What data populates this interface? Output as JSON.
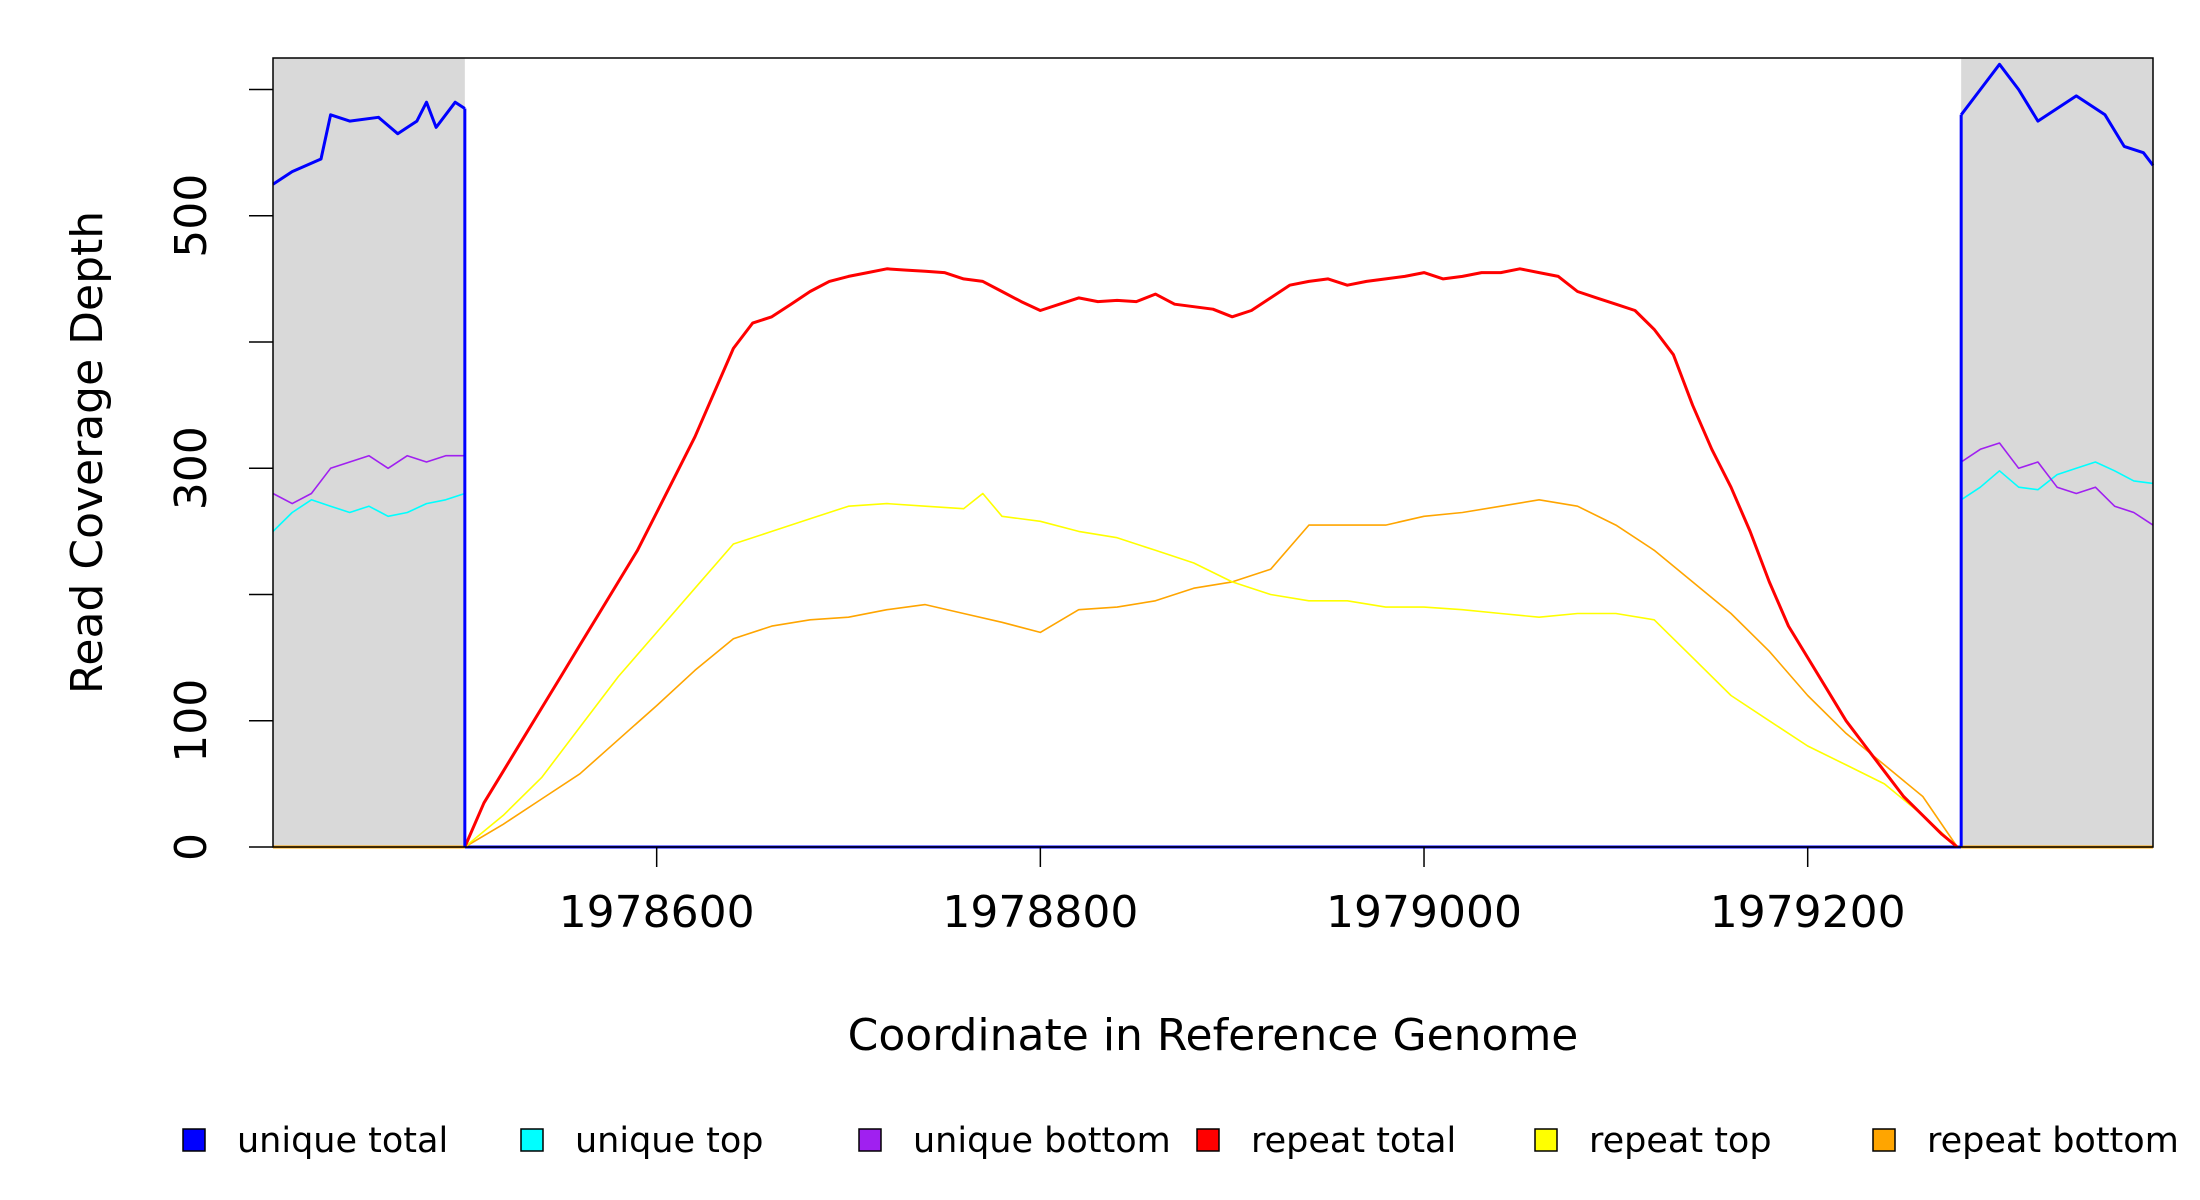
{
  "chart_data": {
    "type": "line",
    "xlabel": "Coordinate in Reference Genome",
    "ylabel": "Read Coverage Depth",
    "xlim": [
      1978400,
      1979380
    ],
    "ylim": [
      0,
      625
    ],
    "x_ticks": [
      1978600,
      1978800,
      1979000,
      1979200
    ],
    "x_tick_labels": [
      "1978600",
      "1978800",
      "1979000",
      "1979200"
    ],
    "y_ticks": [
      0,
      100,
      200,
      300,
      400,
      500,
      600
    ],
    "y_tick_labels": [
      "0",
      "100",
      "",
      "300",
      "",
      "500",
      ""
    ],
    "shaded_regions": [
      {
        "x_start": 1978400,
        "x_end": 1978500,
        "color": "#d9d9d9"
      },
      {
        "x_start": 1979280,
        "x_end": 1979380,
        "color": "#d9d9d9"
      }
    ],
    "legend_position": "bottom",
    "series": [
      {
        "name": "unique total",
        "color": "#0000ff",
        "segments": [
          {
            "x": [
              1978400,
              1978410,
              1978425,
              1978430,
              1978440,
              1978455,
              1978465,
              1978475,
              1978480,
              1978485,
              1978495,
              1978500
            ],
            "y": [
              525,
              535,
              545,
              580,
              575,
              578,
              565,
              575,
              590,
              570,
              590,
              585
            ]
          },
          {
            "x": [
              1979280,
              1979290,
              1979300,
              1979310,
              1979320,
              1979330,
              1979340,
              1979355,
              1979365,
              1979375,
              1979380
            ],
            "y": [
              580,
              600,
              620,
              600,
              575,
              585,
              595,
              580,
              555,
              550,
              540
            ]
          }
        ]
      },
      {
        "name": "unique top",
        "color": "#00ffff",
        "segments": [
          {
            "x": [
              1978400,
              1978410,
              1978420,
              1978430,
              1978440,
              1978450,
              1978460,
              1978470,
              1978480,
              1978490,
              1978500
            ],
            "y": [
              250,
              265,
              275,
              270,
              265,
              270,
              262,
              265,
              272,
              275,
              280
            ]
          },
          {
            "x": [
              1979280,
              1979290,
              1979300,
              1979310,
              1979320,
              1979330,
              1979340,
              1979350,
              1979360,
              1979370,
              1979380
            ],
            "y": [
              275,
              285,
              298,
              285,
              283,
              295,
              300,
              305,
              298,
              290,
              288
            ]
          }
        ]
      },
      {
        "name": "unique bottom",
        "color": "#a020f0",
        "segments": [
          {
            "x": [
              1978400,
              1978410,
              1978420,
              1978430,
              1978440,
              1978450,
              1978460,
              1978470,
              1978480,
              1978490,
              1978500
            ],
            "y": [
              280,
              272,
              280,
              300,
              305,
              310,
              300,
              310,
              305,
              310,
              310
            ]
          },
          {
            "x": [
              1979280,
              1979290,
              1979300,
              1979310,
              1979320,
              1979330,
              1979340,
              1979350,
              1979360,
              1979370,
              1979380
            ],
            "y": [
              305,
              315,
              320,
              300,
              305,
              285,
              280,
              285,
              270,
              265,
              255
            ]
          }
        ]
      },
      {
        "name": "repeat total",
        "color": "#ff0000",
        "segments": [
          {
            "x": [
              1978500,
              1978510,
              1978520,
              1978530,
              1978540,
              1978550,
              1978560,
              1978570,
              1978580,
              1978590,
              1978600,
              1978610,
              1978620,
              1978630,
              1978640,
              1978650,
              1978660,
              1978670,
              1978680,
              1978690,
              1978700,
              1978710,
              1978720,
              1978730,
              1978740,
              1978750,
              1978760,
              1978770,
              1978780,
              1978790,
              1978800,
              1978810,
              1978820,
              1978830,
              1978840,
              1978850,
              1978860,
              1978870,
              1978880,
              1978890,
              1978900,
              1978910,
              1978920,
              1978930,
              1978940,
              1978950,
              1978960,
              1978970,
              1978980,
              1978990,
              1979000,
              1979010,
              1979020,
              1979030,
              1979040,
              1979050,
              1979060,
              1979070,
              1979080,
              1979090,
              1979100,
              1979110,
              1979120,
              1979130,
              1979140,
              1979150,
              1979160,
              1979170,
              1979180,
              1979190,
              1979200,
              1979210,
              1979220,
              1979230,
              1979240,
              1979250,
              1979260,
              1979270,
              1979278
            ],
            "y": [
              0,
              35,
              60,
              85,
              110,
              135,
              160,
              185,
              210,
              235,
              265,
              295,
              325,
              360,
              395,
              415,
              420,
              430,
              440,
              448,
              452,
              455,
              458,
              457,
              456,
              455,
              450,
              448,
              440,
              432,
              425,
              430,
              435,
              432,
              433,
              432,
              438,
              430,
              428,
              426,
              420,
              425,
              435,
              445,
              448,
              450,
              445,
              448,
              450,
              452,
              455,
              450,
              452,
              455,
              455,
              458,
              455,
              452,
              440,
              435,
              430,
              425,
              410,
              390,
              350,
              315,
              285,
              250,
              210,
              175,
              150,
              125,
              100,
              80,
              60,
              40,
              25,
              10,
              0
            ]
          }
        ]
      },
      {
        "name": "repeat top",
        "color": "#ffff00",
        "segments": [
          {
            "x": [
              1978500,
              1978520,
              1978540,
              1978560,
              1978580,
              1978600,
              1978620,
              1978640,
              1978660,
              1978680,
              1978700,
              1978720,
              1978740,
              1978760,
              1978770,
              1978780,
              1978800,
              1978820,
              1978840,
              1978860,
              1978880,
              1978900,
              1978920,
              1978940,
              1978960,
              1978980,
              1979000,
              1979020,
              1979040,
              1979060,
              1979080,
              1979100,
              1979120,
              1979140,
              1979160,
              1979180,
              1979200,
              1979220,
              1979240,
              1979260,
              1979278
            ],
            "y": [
              0,
              25,
              55,
              95,
              135,
              170,
              205,
              240,
              250,
              260,
              270,
              272,
              270,
              268,
              280,
              262,
              258,
              250,
              245,
              235,
              225,
              210,
              200,
              195,
              195,
              190,
              190,
              188,
              185,
              182,
              185,
              185,
              180,
              150,
              120,
              100,
              80,
              65,
              50,
              25,
              0
            ]
          }
        ]
      },
      {
        "name": "repeat bottom",
        "color": "#ffa500",
        "segments": [
          {
            "x": [
              1978500,
              1978520,
              1978540,
              1978560,
              1978580,
              1978600,
              1978620,
              1978640,
              1978660,
              1978680,
              1978700,
              1978720,
              1978740,
              1978760,
              1978780,
              1978800,
              1978820,
              1978840,
              1978860,
              1978880,
              1978900,
              1978920,
              1978940,
              1978960,
              1978980,
              1979000,
              1979020,
              1979040,
              1979060,
              1979080,
              1979100,
              1979120,
              1979140,
              1979160,
              1979180,
              1979200,
              1979220,
              1979240,
              1979260,
              1979278
            ],
            "y": [
              0,
              18,
              38,
              58,
              85,
              112,
              140,
              165,
              175,
              180,
              182,
              188,
              192,
              185,
              178,
              170,
              188,
              190,
              195,
              205,
              210,
              220,
              255,
              255,
              255,
              262,
              265,
              270,
              275,
              270,
              255,
              235,
              210,
              185,
              155,
              120,
              90,
              65,
              40,
              0
            ]
          }
        ]
      }
    ],
    "zero_lines": [
      {
        "series": "unique total",
        "x": [
          1978500,
          1979280
        ],
        "y": [
          0,
          0
        ]
      },
      {
        "series": "repeat bottom",
        "x": [
          1978400,
          1978500
        ],
        "y": [
          0,
          0
        ]
      },
      {
        "series": "repeat bottom",
        "x": [
          1979280,
          1979380
        ],
        "y": [
          0,
          0
        ]
      }
    ]
  }
}
